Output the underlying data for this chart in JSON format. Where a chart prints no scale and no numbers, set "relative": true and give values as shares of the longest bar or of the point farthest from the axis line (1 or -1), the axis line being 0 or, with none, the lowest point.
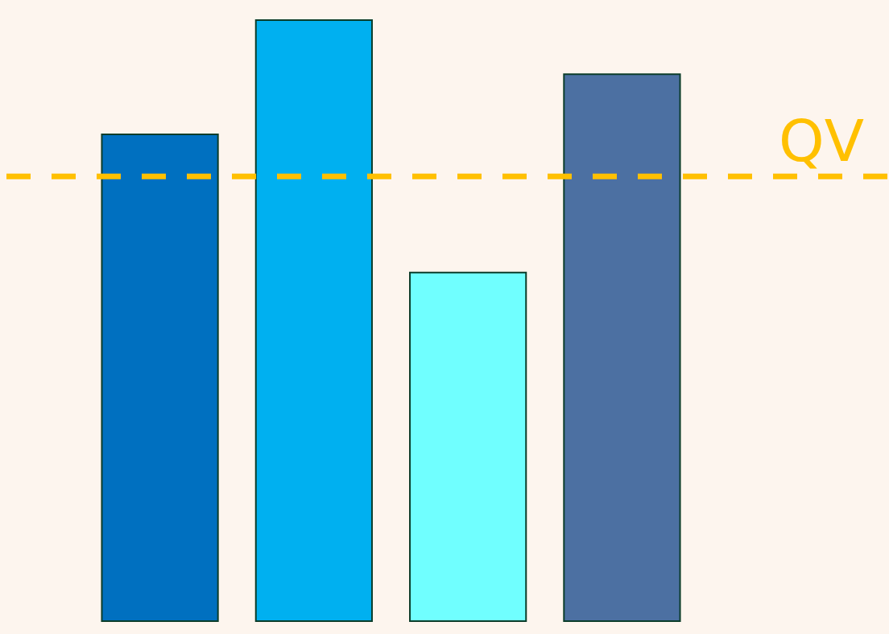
{
  "chart_data": {
    "type": "bar",
    "relative": true,
    "categories": [
      null,
      null,
      null,
      null
    ],
    "values": [
      0.81,
      1,
      0.58,
      0.91
    ],
    "colors": [
      "#0070c0",
      "#00b0f0",
      "#70ffff",
      "#4c70a2"
    ],
    "ref_lines": [
      {
        "axis": "y",
        "value": 0.74,
        "label": "QV",
        "color": "#ffc000",
        "line_style": "dashed"
      }
    ]
  }
}
